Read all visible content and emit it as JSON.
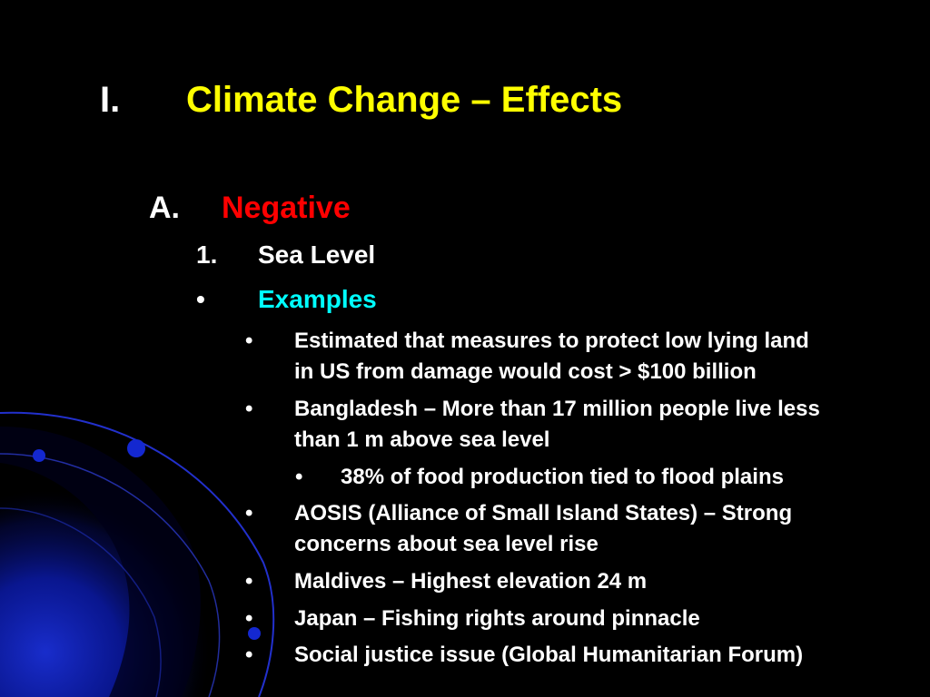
{
  "colors": {
    "background": "#000000",
    "title": "#FFFF00",
    "heading_negative": "#FF0000",
    "heading_examples": "#00FFFF",
    "body": "#FFFFFF"
  },
  "title": {
    "marker": "I.",
    "text": "Climate Change – Effects"
  },
  "section": {
    "marker": "A.",
    "text": "Negative"
  },
  "subsection": {
    "marker": "1.",
    "text": "Sea Level"
  },
  "examples_heading": {
    "marker": "•",
    "text": "Examples"
  },
  "bullets": [
    {
      "marker": "•",
      "lines": [
        "Estimated that measures to protect low lying land",
        "in US from damage would cost > $100 billion"
      ]
    },
    {
      "marker": "•",
      "lines": [
        "Bangladesh – More than 17 million people live less",
        "than 1 m above sea level"
      ]
    },
    {
      "marker": "•",
      "lines": [
        "38% of food production tied to flood plains"
      ]
    },
    {
      "marker": "•",
      "lines": [
        "AOSIS (Alliance of Small Island States) – Strong",
        "concerns about sea level rise"
      ]
    },
    {
      "marker": "•",
      "lines": [
        "Maldives – Highest elevation 24 m"
      ]
    },
    {
      "marker": "•",
      "lines": [
        "Japan – Fishing rights around pinnacle"
      ]
    },
    {
      "marker": "•",
      "lines": [
        "Social justice issue (Global Humanitarian Forum)"
      ]
    }
  ]
}
